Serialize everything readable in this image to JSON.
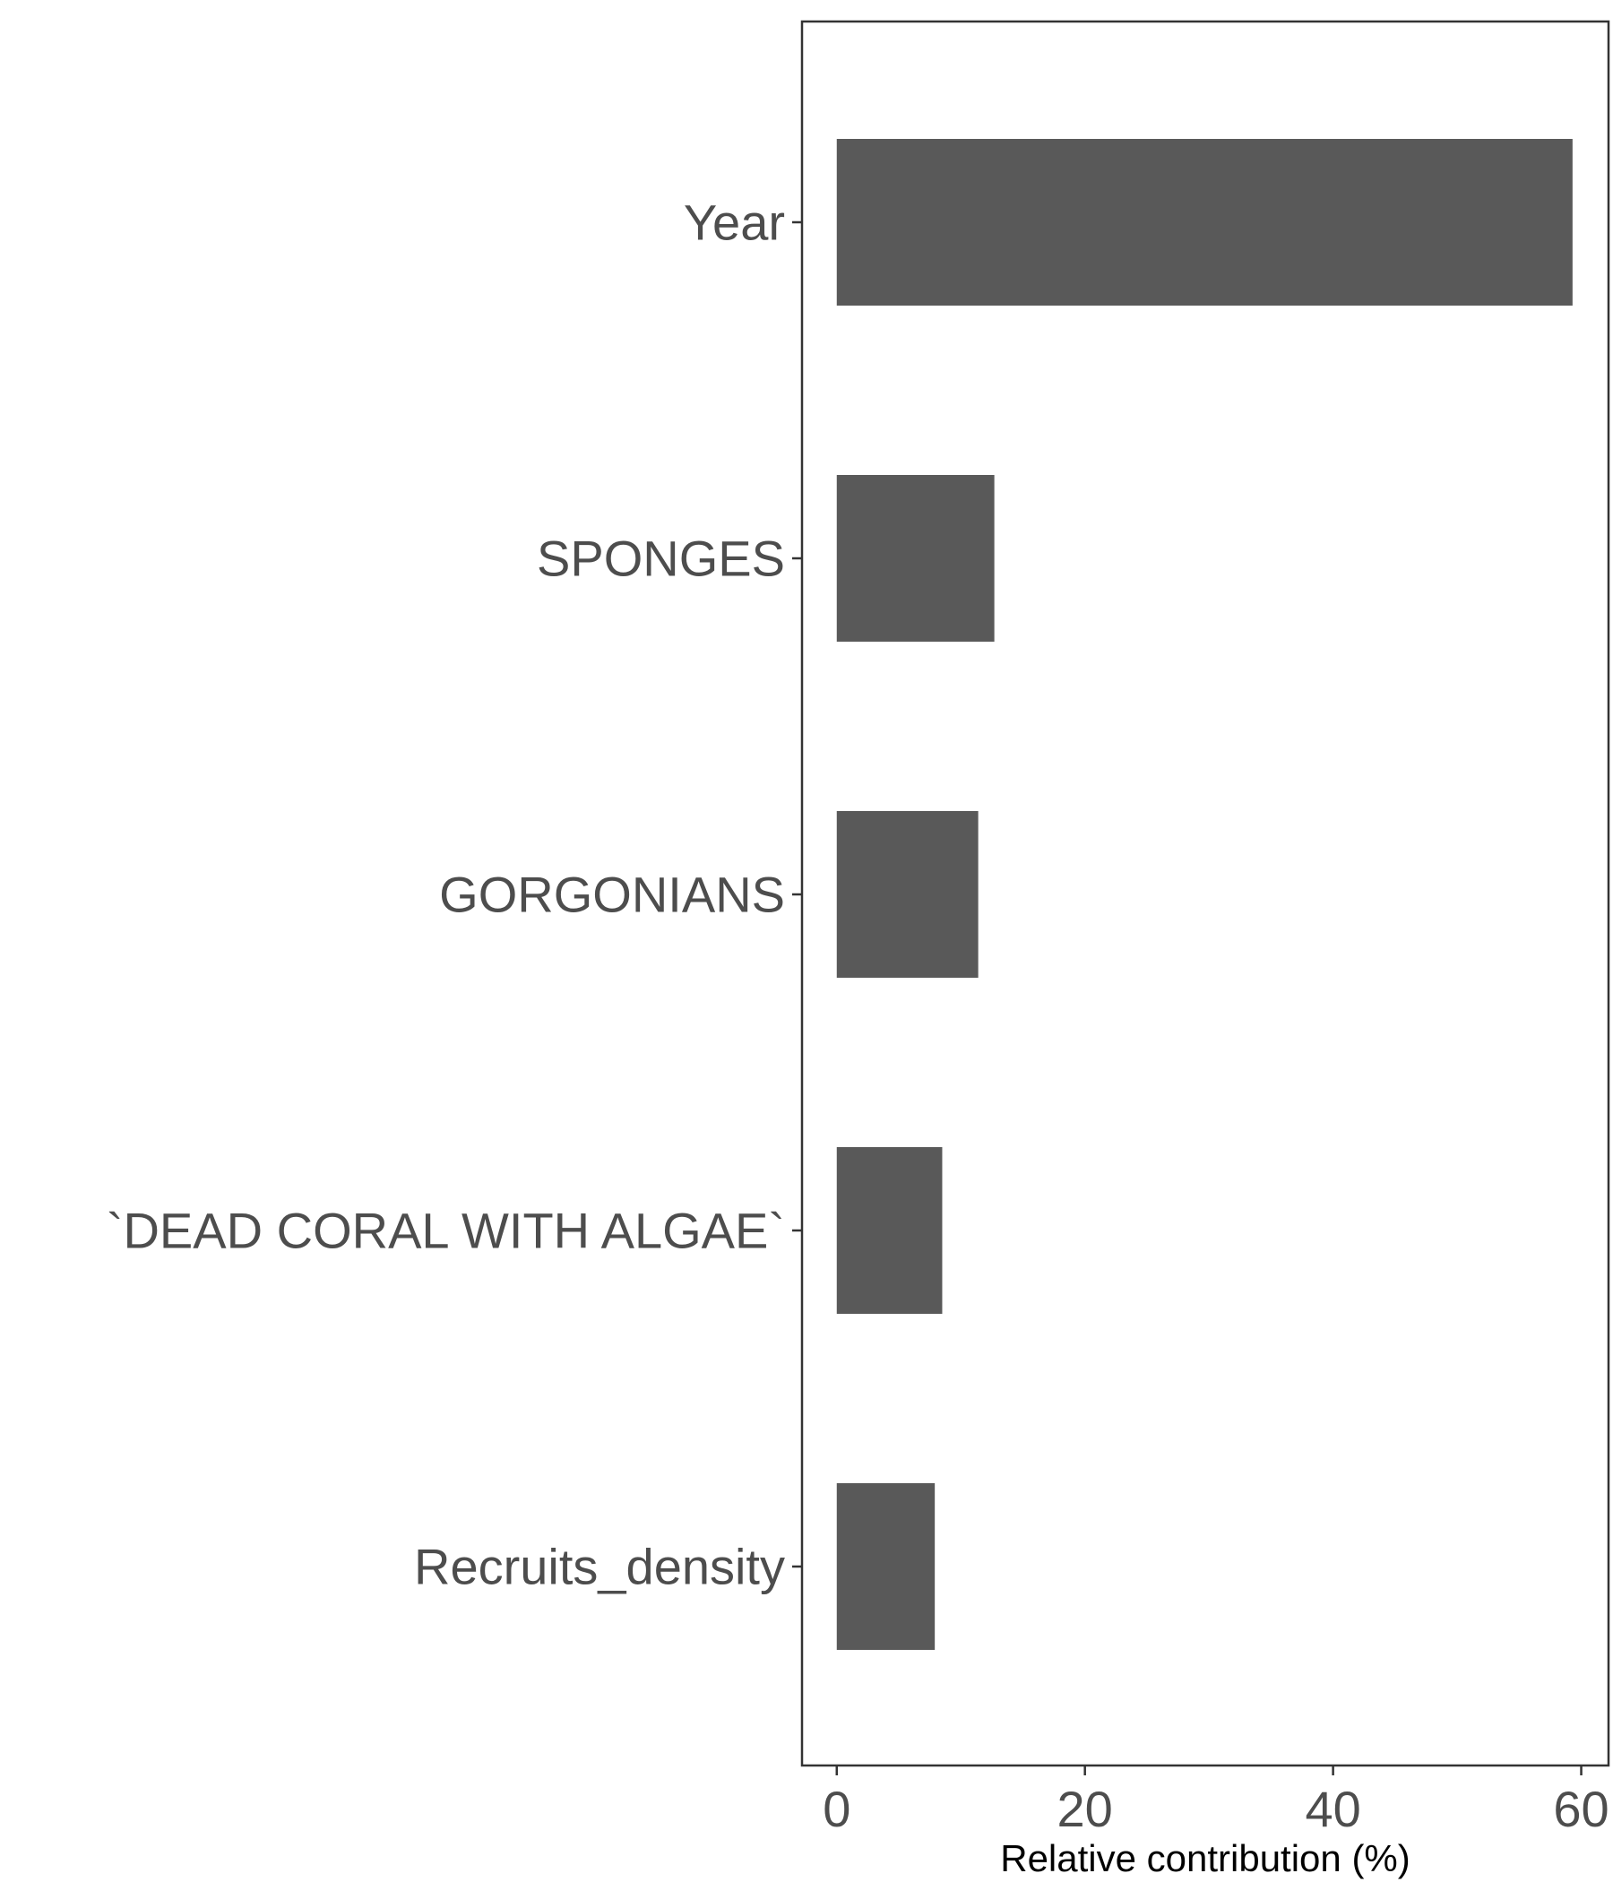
{
  "chart_data": {
    "type": "bar",
    "orientation": "horizontal",
    "categories": [
      "Year",
      "SPONGES",
      "GORGONIANS",
      "`DEAD CORAL WITH ALGAE`",
      "Recruits_density"
    ],
    "values": [
      59.3,
      12.7,
      11.4,
      8.5,
      7.9
    ],
    "xlabel": "Relative contribution (%)",
    "ylabel": "",
    "xlim": [
      -2.8,
      62.2
    ],
    "xticks": [
      0,
      20,
      40,
      60
    ],
    "grid": false,
    "bar_color": "#595959",
    "axis_color": "#333333"
  }
}
